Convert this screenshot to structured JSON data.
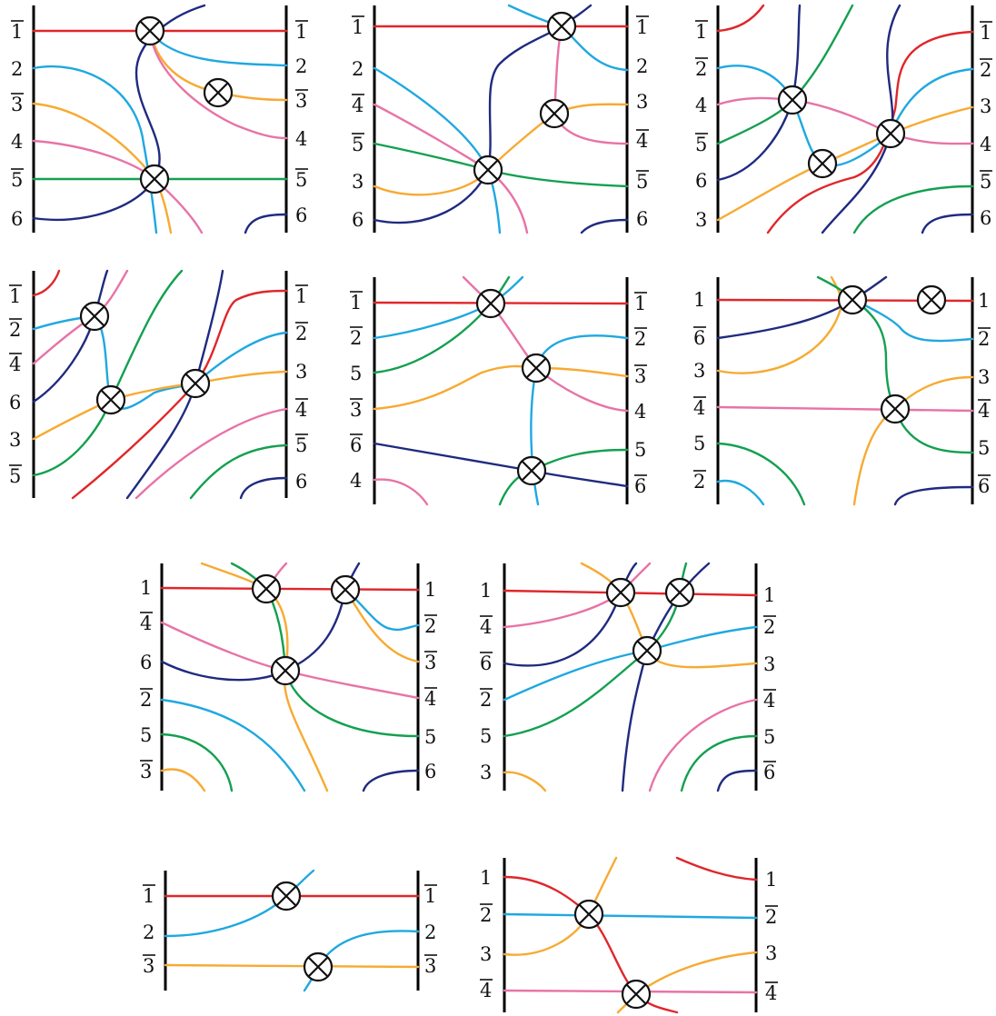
{
  "colors": {
    "red": "#e0262a",
    "cyan": "#1fa8e0",
    "orange": "#f7aa32",
    "pink": "#e873a6",
    "green": "#13a050",
    "navy": "#1f2a80",
    "ink": "#111111"
  },
  "icons": {
    "crossing_marker": "circled-times-icon"
  },
  "panels": [
    {
      "left_labels": [
        {
          "text": "1",
          "bar": true
        },
        {
          "text": "2",
          "bar": false
        },
        {
          "text": "3",
          "bar": true
        },
        {
          "text": "4",
          "bar": false
        },
        {
          "text": "5",
          "bar": true
        },
        {
          "text": "6",
          "bar": false
        }
      ],
      "right_labels": [
        {
          "text": "1",
          "bar": true
        },
        {
          "text": "2",
          "bar": false
        },
        {
          "text": "3",
          "bar": true
        },
        {
          "text": "4",
          "bar": false
        },
        {
          "text": "5",
          "bar": true
        },
        {
          "text": "6",
          "bar": false
        }
      ],
      "crossings": 3
    },
    {
      "left_labels": [
        {
          "text": "1",
          "bar": true
        },
        {
          "text": "2",
          "bar": false
        },
        {
          "text": "4",
          "bar": true
        },
        {
          "text": "5",
          "bar": true
        },
        {
          "text": "3",
          "bar": false
        },
        {
          "text": "6",
          "bar": false
        }
      ],
      "right_labels": [
        {
          "text": "1",
          "bar": true
        },
        {
          "text": "2",
          "bar": false
        },
        {
          "text": "3",
          "bar": false
        },
        {
          "text": "4",
          "bar": true
        },
        {
          "text": "5",
          "bar": true
        },
        {
          "text": "6",
          "bar": false
        }
      ],
      "crossings": 3
    },
    {
      "left_labels": [
        {
          "text": "1",
          "bar": true
        },
        {
          "text": "2",
          "bar": true
        },
        {
          "text": "4",
          "bar": false
        },
        {
          "text": "5",
          "bar": true
        },
        {
          "text": "6",
          "bar": false
        },
        {
          "text": "3",
          "bar": false
        }
      ],
      "right_labels": [
        {
          "text": "1",
          "bar": true
        },
        {
          "text": "2",
          "bar": true
        },
        {
          "text": "3",
          "bar": false
        },
        {
          "text": "4",
          "bar": false
        },
        {
          "text": "5",
          "bar": true
        },
        {
          "text": "6",
          "bar": false
        }
      ],
      "crossings": 3
    },
    {
      "left_labels": [
        {
          "text": "1",
          "bar": true
        },
        {
          "text": "2",
          "bar": true
        },
        {
          "text": "4",
          "bar": true
        },
        {
          "text": "6",
          "bar": false
        },
        {
          "text": "3",
          "bar": false
        },
        {
          "text": "5",
          "bar": true
        }
      ],
      "right_labels": [
        {
          "text": "1",
          "bar": true
        },
        {
          "text": "2",
          "bar": true
        },
        {
          "text": "3",
          "bar": false
        },
        {
          "text": "4",
          "bar": true
        },
        {
          "text": "5",
          "bar": true
        },
        {
          "text": "6",
          "bar": false
        }
      ],
      "crossings": 3
    },
    {
      "left_labels": [
        {
          "text": "1",
          "bar": true
        },
        {
          "text": "2",
          "bar": true
        },
        {
          "text": "5",
          "bar": false
        },
        {
          "text": "3",
          "bar": true
        },
        {
          "text": "6",
          "bar": true
        },
        {
          "text": "4",
          "bar": false
        }
      ],
      "right_labels": [
        {
          "text": "1",
          "bar": true
        },
        {
          "text": "2",
          "bar": true
        },
        {
          "text": "3",
          "bar": true
        },
        {
          "text": "4",
          "bar": false
        },
        {
          "text": "5",
          "bar": false
        },
        {
          "text": "6",
          "bar": true
        }
      ],
      "crossings": 3
    },
    {
      "left_labels": [
        {
          "text": "1",
          "bar": false
        },
        {
          "text": "6",
          "bar": true
        },
        {
          "text": "3",
          "bar": false
        },
        {
          "text": "4",
          "bar": true
        },
        {
          "text": "5",
          "bar": false
        },
        {
          "text": "2",
          "bar": true
        }
      ],
      "right_labels": [
        {
          "text": "1",
          "bar": false
        },
        {
          "text": "2",
          "bar": true
        },
        {
          "text": "3",
          "bar": false
        },
        {
          "text": "4",
          "bar": true
        },
        {
          "text": "5",
          "bar": false
        },
        {
          "text": "6",
          "bar": true
        }
      ],
      "crossings": 3
    },
    {
      "left_labels": [
        {
          "text": "1",
          "bar": false
        },
        {
          "text": "4",
          "bar": true
        },
        {
          "text": "6",
          "bar": false
        },
        {
          "text": "2",
          "bar": true
        },
        {
          "text": "5",
          "bar": false
        },
        {
          "text": "3",
          "bar": true
        }
      ],
      "right_labels": [
        {
          "text": "1",
          "bar": false
        },
        {
          "text": "2",
          "bar": true
        },
        {
          "text": "3",
          "bar": true
        },
        {
          "text": "4",
          "bar": true
        },
        {
          "text": "5",
          "bar": false
        },
        {
          "text": "6",
          "bar": false
        }
      ],
      "crossings": 3
    },
    {
      "left_labels": [
        {
          "text": "1",
          "bar": false
        },
        {
          "text": "4",
          "bar": true
        },
        {
          "text": "6",
          "bar": true
        },
        {
          "text": "2",
          "bar": true
        },
        {
          "text": "5",
          "bar": false
        },
        {
          "text": "3",
          "bar": false
        }
      ],
      "right_labels": [
        {
          "text": "1",
          "bar": false
        },
        {
          "text": "2",
          "bar": true
        },
        {
          "text": "3",
          "bar": false
        },
        {
          "text": "4",
          "bar": true
        },
        {
          "text": "5",
          "bar": false
        },
        {
          "text": "6",
          "bar": true
        }
      ],
      "crossings": 3
    },
    {
      "left_labels": [
        {
          "text": "1",
          "bar": true
        },
        {
          "text": "2",
          "bar": false
        },
        {
          "text": "3",
          "bar": true
        }
      ],
      "right_labels": [
        {
          "text": "1",
          "bar": true
        },
        {
          "text": "2",
          "bar": false
        },
        {
          "text": "3",
          "bar": true
        }
      ],
      "crossings": 2
    },
    {
      "left_labels": [
        {
          "text": "1",
          "bar": false
        },
        {
          "text": "2",
          "bar": true
        },
        {
          "text": "3",
          "bar": false
        },
        {
          "text": "4",
          "bar": true
        }
      ],
      "right_labels": [
        {
          "text": "1",
          "bar": false
        },
        {
          "text": "2",
          "bar": true
        },
        {
          "text": "3",
          "bar": false
        },
        {
          "text": "4",
          "bar": true
        }
      ],
      "crossings": 2
    }
  ]
}
